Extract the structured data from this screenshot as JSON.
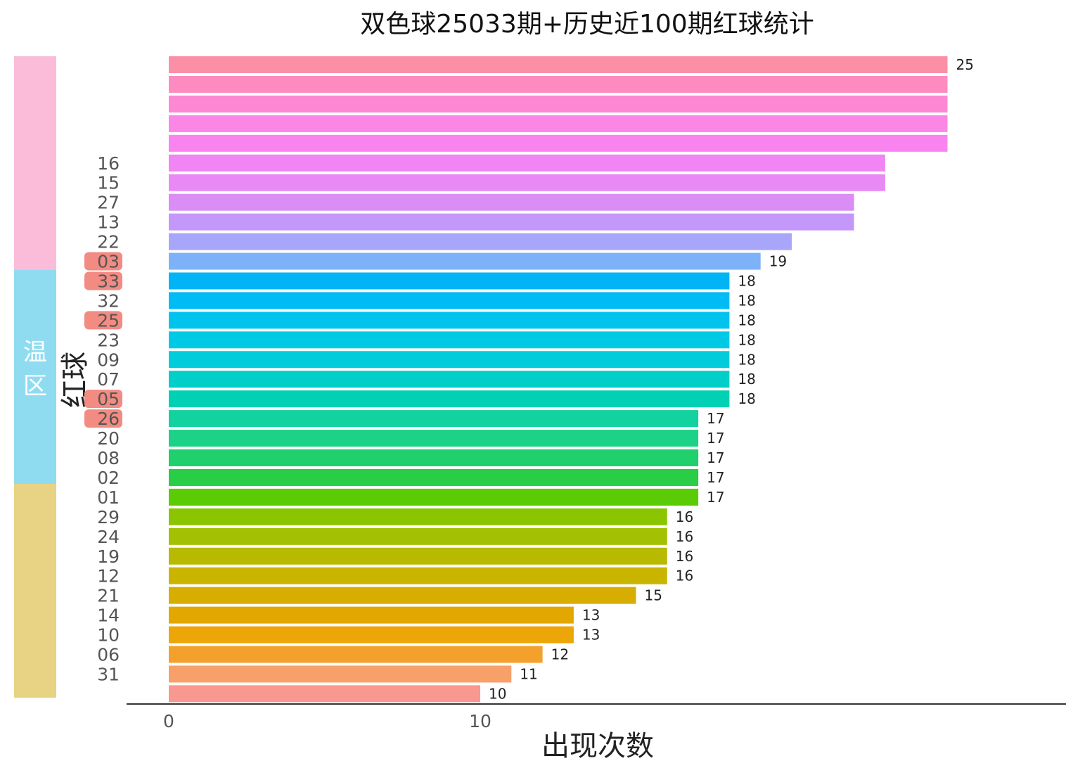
{
  "chart_data": {
    "type": "bar",
    "orientation": "horizontal",
    "title": "双色球25033期+历史近100期红球统计",
    "xlabel": "出现次数",
    "ylabel": "红球",
    "xlim": [
      0,
      29
    ],
    "xticks": [
      "0",
      "10"
    ],
    "grid": false,
    "categories": [
      "25_top",
      "",
      "",
      "",
      "",
      "16",
      "15",
      "27",
      "13",
      "22",
      "03",
      "33",
      "32",
      "25",
      "23",
      "09",
      "07",
      "05",
      "26",
      "20",
      "08",
      "02",
      "01",
      "29",
      "24",
      "19",
      "12",
      "21",
      "14",
      "10",
      "06",
      "31",
      ""
    ],
    "values": [
      25,
      25,
      25,
      25,
      25,
      23,
      23,
      22,
      22,
      20,
      19,
      18,
      18,
      18,
      18,
      18,
      18,
      18,
      17,
      17,
      17,
      17,
      17,
      16,
      16,
      16,
      16,
      15,
      13,
      13,
      12,
      11,
      10
    ],
    "value_labels": [
      "25",
      "",
      "",
      "",
      "",
      "",
      "",
      "",
      "",
      "",
      "19",
      "18",
      "18",
      "18",
      "18",
      "18",
      "18",
      "18",
      "17",
      "17",
      "17",
      "17",
      "17",
      "16",
      "16",
      "16",
      "16",
      "15",
      "13",
      "13",
      "12",
      "11",
      "10"
    ],
    "category_labels": [
      "",
      "",
      "",
      "",
      "",
      "16",
      "15",
      "27",
      "13",
      "22",
      "03",
      "33",
      "32",
      "25",
      "23",
      "09",
      "07",
      "05",
      "26",
      "20",
      "08",
      "02",
      "01",
      "29",
      "24",
      "19",
      "12",
      "21",
      "14",
      "10",
      "06",
      "31",
      ""
    ],
    "highlighted": [
      "03",
      "33",
      "25",
      "05",
      "26"
    ],
    "highlight_color": "#f28b82",
    "bar_colors": [
      "#fb8fa6",
      "#fd8bbf",
      "#fc88d4",
      "#fb86e6",
      "#f984ef",
      "#f085f3",
      "#e889f5",
      "#d98df5",
      "#c398fa",
      "#a8a6fb",
      "#7eb2f8",
      "#00b4f6",
      "#00bcf4",
      "#00c3ee",
      "#00c9e6",
      "#00ccdb",
      "#00cfc9",
      "#00d0b4",
      "#12d2a0",
      "#1cd287",
      "#1fd06c",
      "#29cd46",
      "#5acb04",
      "#8bc501",
      "#a4c002",
      "#b8ba00",
      "#c9b500",
      "#d6ad00",
      "#e2a700",
      "#eca607",
      "#f3a02d",
      "#f7a06a",
      "#f8988e"
    ],
    "zones": [
      {
        "label": "",
        "color": "#fbbcd9"
      },
      {
        "label": "温区",
        "color": "#8fdcf1"
      },
      {
        "label": "",
        "color": "#e8d283"
      }
    ]
  }
}
